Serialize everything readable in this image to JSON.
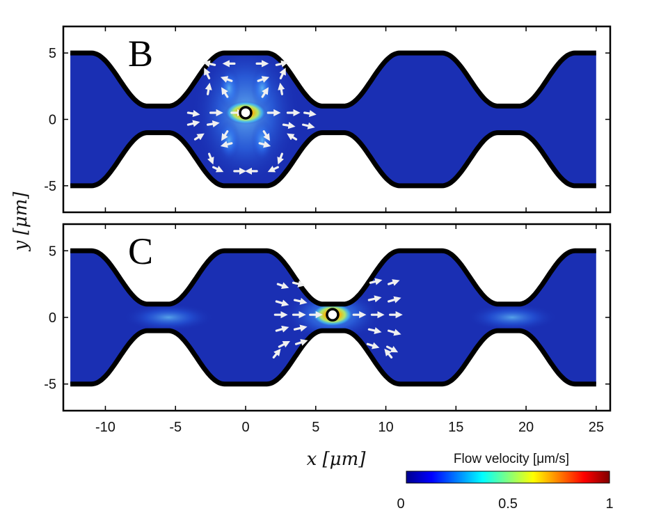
{
  "chart_data": [
    {
      "type": "heatmap",
      "panel_label": "B",
      "xlim": [
        -13,
        26
      ],
      "ylim": [
        -7,
        7
      ],
      "yticks": [
        -5,
        0,
        5
      ],
      "particle": {
        "x": 0,
        "y": 0.5
      },
      "hotspot": {
        "x": 0,
        "y": 0.5
      },
      "arrows": [
        [
          -2.2,
          4.1,
          -0.6,
          0.15
        ],
        [
          -0.8,
          4.2,
          -0.6,
          0.0
        ],
        [
          0.8,
          4.2,
          0.6,
          0.0
        ],
        [
          2.2,
          4.1,
          0.6,
          0.15
        ],
        [
          -2.6,
          3.1,
          -0.25,
          0.55
        ],
        [
          -1.0,
          2.9,
          -0.55,
          0.2
        ],
        [
          0.9,
          2.9,
          0.55,
          0.2
        ],
        [
          2.5,
          3.1,
          0.25,
          0.55
        ],
        [
          -2.7,
          1.9,
          0.1,
          0.6
        ],
        [
          -1.3,
          1.7,
          -0.3,
          0.5
        ],
        [
          1.2,
          1.7,
          0.3,
          0.5
        ],
        [
          2.6,
          1.9,
          -0.1,
          0.6
        ],
        [
          -4.1,
          0.5,
          0.6,
          -0.1
        ],
        [
          -2.5,
          0.5,
          0.65,
          0.0
        ],
        [
          -1.0,
          0.5,
          0.65,
          0.0
        ],
        [
          1.6,
          0.5,
          0.65,
          0.0
        ],
        [
          3.0,
          0.5,
          0.65,
          0.0
        ],
        [
          4.2,
          0.5,
          0.6,
          -0.1
        ],
        [
          -4.1,
          -0.4,
          0.6,
          0.15
        ],
        [
          -2.7,
          -0.4,
          0.6,
          0.1
        ],
        [
          2.7,
          -0.4,
          0.6,
          -0.1
        ],
        [
          4.1,
          -0.4,
          0.6,
          -0.15
        ],
        [
          -3.6,
          -1.5,
          0.45,
          0.3
        ],
        [
          -1.3,
          -0.9,
          -0.3,
          -0.5
        ],
        [
          1.3,
          -0.9,
          0.3,
          -0.5
        ],
        [
          3.6,
          -1.5,
          -0.45,
          0.3
        ],
        [
          -2.6,
          -2.6,
          0.2,
          -0.55
        ],
        [
          -1.0,
          -1.8,
          -0.55,
          -0.15
        ],
        [
          1.0,
          -1.8,
          0.55,
          -0.15
        ],
        [
          2.6,
          -2.6,
          -0.2,
          -0.55
        ],
        [
          -2.3,
          -3.6,
          0.5,
          -0.25
        ],
        [
          -0.8,
          -3.9,
          0.6,
          0.0
        ],
        [
          0.8,
          -3.9,
          -0.6,
          0.0
        ],
        [
          2.3,
          -3.6,
          -0.5,
          -0.25
        ]
      ]
    },
    {
      "type": "heatmap",
      "panel_label": "C",
      "xlim": [
        -13,
        26
      ],
      "ylim": [
        -7,
        7
      ],
      "xticks": [
        -10,
        -5,
        0,
        5,
        10,
        15,
        20,
        25
      ],
      "yticks": [
        -5,
        0,
        5
      ],
      "xlabel": "x [μm]",
      "ylabel": "y [μm]",
      "particle": {
        "x": 6.2,
        "y": 0.2
      },
      "hotspot": {
        "x": 6.2,
        "y": 0.2
      },
      "arrows": [
        [
          2.3,
          2.5,
          0.55,
          -0.2
        ],
        [
          3.4,
          2.6,
          0.6,
          -0.15
        ],
        [
          8.9,
          2.6,
          0.6,
          0.15
        ],
        [
          10.2,
          2.5,
          0.55,
          0.2
        ],
        [
          2.2,
          1.2,
          0.65,
          -0.2
        ],
        [
          3.5,
          1.3,
          0.65,
          -0.15
        ],
        [
          8.8,
          1.3,
          0.65,
          0.15
        ],
        [
          10.2,
          1.2,
          0.65,
          0.2
        ],
        [
          2.1,
          0.2,
          0.65,
          0.0
        ],
        [
          3.4,
          0.2,
          0.65,
          0.0
        ],
        [
          4.6,
          0.2,
          0.65,
          0.0
        ],
        [
          7.7,
          0.2,
          0.65,
          0.0
        ],
        [
          9.0,
          0.2,
          0.65,
          0.0
        ],
        [
          10.3,
          0.2,
          0.65,
          0.0
        ],
        [
          2.2,
          -1.0,
          0.65,
          0.2
        ],
        [
          3.5,
          -0.9,
          0.65,
          0.15
        ],
        [
          8.8,
          -0.9,
          0.65,
          -0.15
        ],
        [
          10.2,
          -1.0,
          0.65,
          -0.2
        ],
        [
          2.4,
          -2.2,
          0.55,
          0.3
        ],
        [
          3.6,
          -2.0,
          0.6,
          0.2
        ],
        [
          8.7,
          -2.0,
          0.6,
          -0.2
        ],
        [
          10.1,
          -2.2,
          0.55,
          -0.3
        ],
        [
          2.0,
          -3.0,
          0.35,
          0.45
        ],
        [
          10.4,
          -3.0,
          -0.35,
          0.45
        ]
      ]
    }
  ],
  "colorbar": {
    "title": "Flow velocity [μm/s]",
    "ticks": [
      0,
      0.5,
      1
    ],
    "tick_labels": [
      "0",
      "0.5",
      "1"
    ],
    "range": [
      0,
      1
    ],
    "colormap": "jet",
    "stops": [
      "#00008f",
      "#0000ff",
      "#0080ff",
      "#00ffff",
      "#80ff80",
      "#ffff00",
      "#ff8000",
      "#ff0000",
      "#800000"
    ]
  },
  "colors": {
    "background": "#1a2fb3",
    "hot": "#ffb400",
    "wall": "#000000",
    "arrow": "#f0f0f0"
  }
}
